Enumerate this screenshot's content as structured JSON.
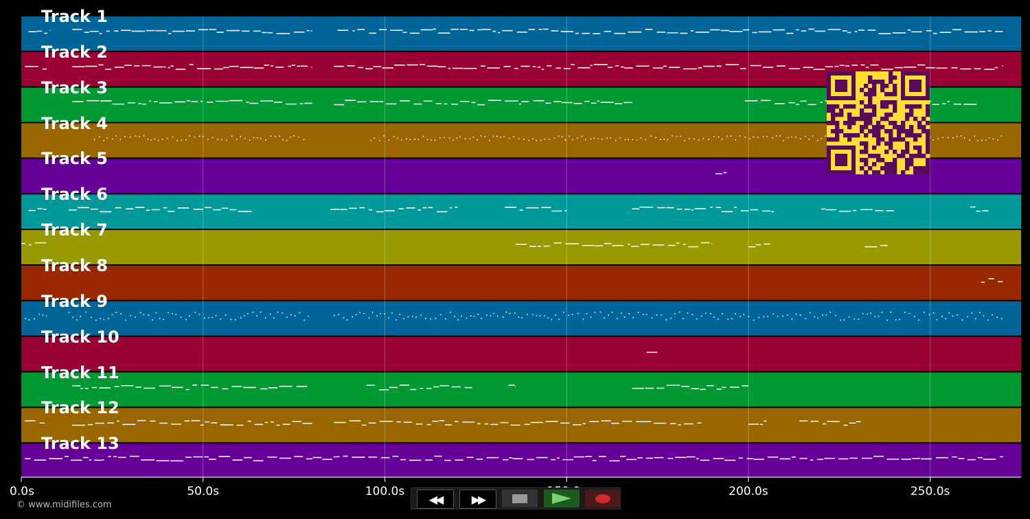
{
  "tracks": [
    {
      "label": "Track 1",
      "color": "#00669a"
    },
    {
      "label": "Track 2",
      "color": "#990033"
    },
    {
      "label": "Track 3",
      "color": "#009933"
    },
    {
      "label": "Track 4",
      "color": "#996600"
    },
    {
      "label": "Track 5",
      "color": "#660099"
    },
    {
      "label": "Track 6",
      "color": "#009999"
    },
    {
      "label": "Track 7",
      "color": "#999900"
    },
    {
      "label": "Track 8",
      "color": "#992800"
    },
    {
      "label": "Track 9",
      "color": "#00669a"
    },
    {
      "label": "Track 10",
      "color": "#990033"
    },
    {
      "label": "Track 11",
      "color": "#009933"
    },
    {
      "label": "Track 12",
      "color": "#996600"
    },
    {
      "label": "Track 13",
      "color": "#660099"
    }
  ],
  "time_axis": {
    "max_seconds": 275,
    "ticks": [
      {
        "value": 0,
        "label": "0.0s"
      },
      {
        "value": 50,
        "label": "50.0s"
      },
      {
        "value": 100,
        "label": "100.0s"
      },
      {
        "value": 150,
        "label": "150.0s"
      },
      {
        "value": 200,
        "label": "200.0s"
      },
      {
        "value": 250,
        "label": "250.0s"
      }
    ]
  },
  "transport": {
    "rewind_icon": "rewind-icon",
    "fast_forward_icon": "fast-forward-icon",
    "stop_icon": "stop-icon",
    "play_icon": "play-icon",
    "record_icon": "record-icon"
  },
  "qr_colors": {
    "fg": "#5a0a5a",
    "bg": "#ffe033"
  },
  "copyright": "© www.midifiles.com"
}
